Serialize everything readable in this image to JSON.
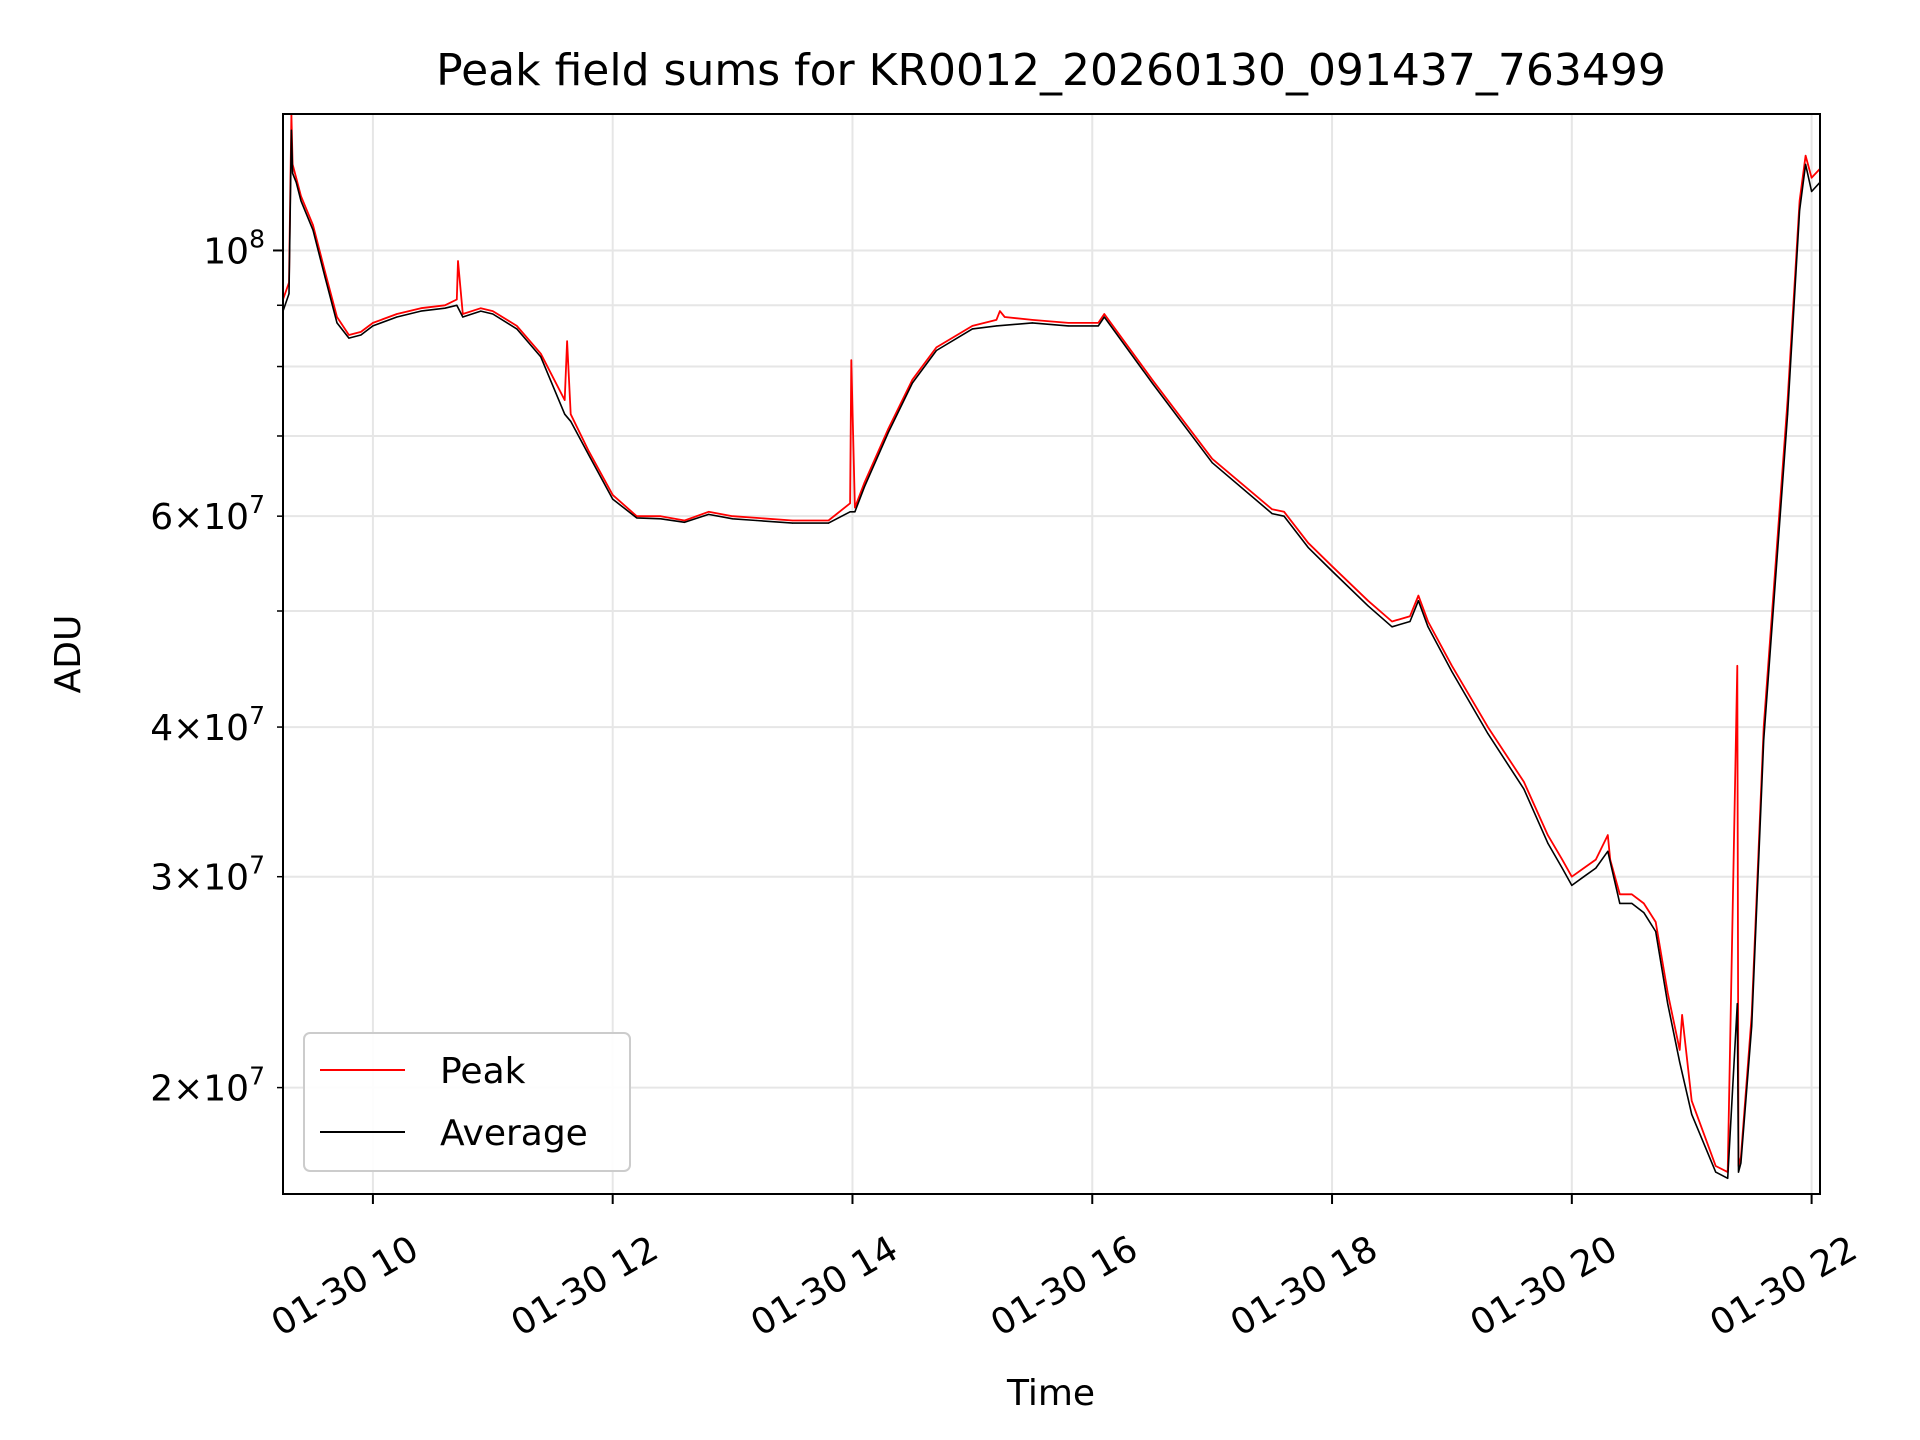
{
  "chart_data": {
    "type": "line",
    "title": "Peak field sums for KR0012_20260130_091437_763499",
    "xlabel": "Time",
    "ylabel": "ADU",
    "yscale": "log",
    "xlim": [
      9.25,
      22.07
    ],
    "ylim": [
      16300000,
      130000000
    ],
    "grid": true,
    "x_ticks": [
      {
        "value": 10,
        "label": "01-30 10"
      },
      {
        "value": 12,
        "label": "01-30 12"
      },
      {
        "value": 14,
        "label": "01-30 14"
      },
      {
        "value": 16,
        "label": "01-30 16"
      },
      {
        "value": 18,
        "label": "01-30 18"
      },
      {
        "value": 20,
        "label": "01-30 20"
      },
      {
        "value": 22,
        "label": "01-30 22"
      }
    ],
    "y_major_ticks": [
      {
        "value": 100000000,
        "mant": "",
        "exp": "8"
      }
    ],
    "y_minor_ticks": [
      {
        "value": 20000000,
        "mant": "2",
        "exp": "7"
      },
      {
        "value": 30000000,
        "mant": "3",
        "exp": "7"
      },
      {
        "value": 40000000,
        "mant": "4",
        "exp": "7"
      },
      {
        "value": 60000000,
        "mant": "6",
        "exp": "7"
      }
    ],
    "y_minor_gridlines": [
      50000000,
      70000000,
      80000000,
      90000000
    ],
    "x_minor_gridlines": [],
    "legend": {
      "position": "lower-left"
    },
    "series": [
      {
        "name": "Peak",
        "color": "#ff0000",
        "x": [
          9.25,
          9.3,
          9.32,
          9.33,
          9.36,
          9.4,
          9.5,
          9.6,
          9.7,
          9.8,
          9.9,
          10.0,
          10.2,
          10.4,
          10.6,
          10.7,
          10.71,
          10.75,
          10.9,
          11.0,
          11.2,
          11.4,
          11.6,
          11.62,
          11.65,
          11.8,
          12.0,
          12.2,
          12.4,
          12.6,
          12.8,
          13.0,
          13.2,
          13.5,
          13.8,
          13.98,
          13.99,
          14.02,
          14.1,
          14.3,
          14.5,
          14.7,
          15.0,
          15.2,
          15.23,
          15.27,
          15.5,
          15.8,
          16.05,
          16.1,
          16.5,
          17.0,
          17.5,
          17.6,
          17.8,
          18.0,
          18.3,
          18.5,
          18.65,
          18.72,
          18.8,
          19.0,
          19.3,
          19.6,
          19.8,
          19.92,
          20.0,
          20.1,
          20.2,
          20.3,
          20.32,
          20.4,
          20.5,
          20.6,
          20.7,
          20.8,
          20.9,
          20.92,
          21.0,
          21.2,
          21.3,
          21.38,
          21.39,
          21.41,
          21.5,
          21.6,
          21.8,
          21.9,
          21.95,
          22.0,
          22.07
        ],
        "y": [
          91000000,
          94000000,
          130000000,
          118000000,
          115000000,
          111000000,
          105000000,
          96000000,
          88000000,
          85000000,
          85500000,
          87000000,
          88500000,
          89500000,
          90000000,
          91000000,
          98000000,
          88500000,
          89500000,
          89000000,
          86500000,
          82000000,
          75000000,
          84000000,
          73000000,
          68000000,
          62500000,
          60000000,
          60000000,
          59500000,
          60500000,
          60000000,
          59800000,
          59500000,
          59500000,
          61500000,
          81000000,
          61000000,
          64000000,
          71000000,
          78000000,
          83000000,
          86500000,
          87500000,
          89000000,
          88000000,
          87500000,
          87000000,
          87000000,
          88500000,
          78000000,
          67000000,
          60800000,
          60500000,
          57000000,
          54500000,
          51000000,
          49000000,
          49500000,
          51500000,
          49000000,
          45000000,
          40000000,
          36000000,
          32500000,
          31000000,
          30000000,
          30500000,
          31000000,
          32500000,
          31000000,
          29000000,
          29000000,
          28500000,
          27500000,
          24000000,
          21500000,
          23000000,
          19500000,
          17200000,
          17000000,
          45000000,
          17200000,
          17500000,
          23000000,
          40000000,
          75000000,
          110000000,
          120000000,
          115000000,
          117000000
        ]
      },
      {
        "name": "Average",
        "color": "#000000",
        "x": [
          9.25,
          9.3,
          9.32,
          9.33,
          9.36,
          9.4,
          9.5,
          9.6,
          9.7,
          9.8,
          9.9,
          10.0,
          10.2,
          10.4,
          10.6,
          10.7,
          10.75,
          10.9,
          11.0,
          11.2,
          11.4,
          11.6,
          11.65,
          11.8,
          12.0,
          12.2,
          12.4,
          12.6,
          12.8,
          13.0,
          13.2,
          13.5,
          13.8,
          13.98,
          14.02,
          14.1,
          14.3,
          14.5,
          14.7,
          15.0,
          15.2,
          15.5,
          15.8,
          16.05,
          16.1,
          16.5,
          17.0,
          17.5,
          17.6,
          17.8,
          18.0,
          18.3,
          18.5,
          18.65,
          18.72,
          18.8,
          19.0,
          19.3,
          19.6,
          19.8,
          19.92,
          20.0,
          20.1,
          20.2,
          20.3,
          20.4,
          20.5,
          20.6,
          20.7,
          20.8,
          20.9,
          21.0,
          21.2,
          21.3,
          21.38,
          21.39,
          21.41,
          21.5,
          21.6,
          21.8,
          21.9,
          21.95,
          22.0,
          22.07
        ],
        "y": [
          89000000,
          92000000,
          126000000,
          116000000,
          114000000,
          110000000,
          104000000,
          95000000,
          87000000,
          84500000,
          85000000,
          86500000,
          88000000,
          89000000,
          89500000,
          90000000,
          88000000,
          89000000,
          88500000,
          86000000,
          81500000,
          73000000,
          72000000,
          67500000,
          62000000,
          59800000,
          59700000,
          59300000,
          60200000,
          59700000,
          59500000,
          59200000,
          59200000,
          60500000,
          60500000,
          63500000,
          70500000,
          77500000,
          82500000,
          86000000,
          86500000,
          87000000,
          86500000,
          86500000,
          88000000,
          77500000,
          66500000,
          60300000,
          60000000,
          56500000,
          54000000,
          50500000,
          48500000,
          49000000,
          51000000,
          48500000,
          44500000,
          39500000,
          35500000,
          32000000,
          30500000,
          29500000,
          30000000,
          30500000,
          31500000,
          28500000,
          28500000,
          28000000,
          27000000,
          23500000,
          21000000,
          19000000,
          17000000,
          16800000,
          23500000,
          17000000,
          17300000,
          22500000,
          39000000,
          73000000,
          108000000,
          118000000,
          112000000,
          114000000
        ]
      }
    ]
  }
}
